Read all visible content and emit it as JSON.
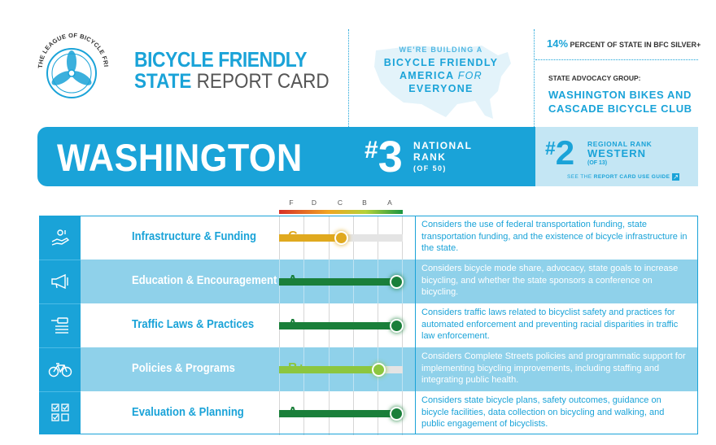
{
  "header": {
    "logo_text": "THE LEAGUE OF BICYCLE FRIENDLY AMERICA",
    "title_line1": "BICYCLE FRIENDLY",
    "title_bold": "STATE",
    "title_rest": "REPORT CARD",
    "slogan_line1": "WE'RE BUILDING A",
    "slogan_line2": "BICYCLE FRIENDLY",
    "slogan_line3a": "AMERICA",
    "slogan_line3b": "FOR",
    "slogan_line4": "EVERYONE",
    "silver_pct": "14%",
    "silver_text": "PERCENT OF STATE IN BFC SILVER+",
    "advocacy_label": "STATE ADVOCACY GROUP:",
    "advocacy_line1": "WASHINGTON BIKES AND",
    "advocacy_line2": "CASCADE BICYCLE CLUB"
  },
  "banner": {
    "state": "WASHINGTON",
    "national_hash": "#",
    "national_rank": "3",
    "national_label1": "NATIONAL",
    "national_label2": "RANK",
    "national_of": "(OF 50)",
    "regional_hash": "#",
    "regional_rank": "2",
    "regional_label1": "REGIONAL RANK",
    "regional_label2": "WESTERN",
    "regional_of": "(OF 13)",
    "guide_prefix": "SEE THE",
    "guide_link": "REPORT CARD USE GUIDE"
  },
  "grade_scale": [
    "F",
    "D",
    "C",
    "B",
    "A"
  ],
  "colors": {
    "brand_blue": "#1aa3d8",
    "grade_c": "#e0a91f",
    "grade_a": "#1a7f3a",
    "grade_bplus": "#8cc63f"
  },
  "categories": [
    {
      "icon": "hand-money-icon",
      "name": "Infrastructure & Funding",
      "grade": "C",
      "level": 0.5,
      "color": "#e0a91f",
      "description": "Considers the use of federal transportation funding, state transportation funding, and the existence of bicycle infrastructure in the state."
    },
    {
      "icon": "megaphone-icon",
      "name": "Education & Encouragement",
      "grade": "A",
      "level": 0.95,
      "color": "#1a7f3a",
      "description": "Considers bicycle mode share, advocacy, state goals to increase bicycling, and whether the state sponsors a conference on bicycling."
    },
    {
      "icon": "gavel-icon",
      "name": "Traffic Laws & Practices",
      "grade": "A",
      "level": 0.95,
      "color": "#1a7f3a",
      "description": "Considers traffic laws related to bicyclist safety and practices for automated enforcement and preventing racial disparities in traffic law enforcement."
    },
    {
      "icon": "bicycle-icon",
      "name": "Policies & Programs",
      "grade": "B+",
      "level": 0.8,
      "color": "#8cc63f",
      "description": "Considers Complete Streets policies and programmatic support for implementing bicycling improvements, including staffing and integrating public health."
    },
    {
      "icon": "checklist-icon",
      "name": "Evaluation & Planning",
      "grade": "A",
      "level": 0.95,
      "color": "#1a7f3a",
      "description": "Considers state bicycle plans, safety outcomes, guidance on bicycle facilities, data collection on bicycling and walking, and public engagement of bicyclists."
    }
  ]
}
